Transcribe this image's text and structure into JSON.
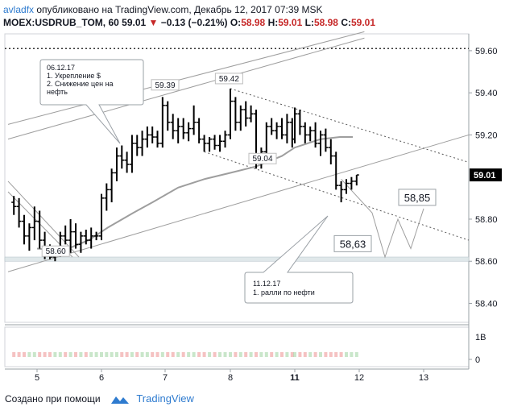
{
  "header": {
    "author": "avladfx",
    "published_text": "опубликовано на TradingView.com, Декабрь 12, 2017 07:39 MSK",
    "symbol": "MOEX:USDRUB_TOM, 60",
    "last": "59.01",
    "change": "−0.13 (−0.21%)",
    "o_label": "O:",
    "o_val": "58.98",
    "h_label": "H:",
    "h_val": "59.01",
    "l_label": "L:",
    "l_val": "58.98",
    "c_label": "C:",
    "c_val": "59.01"
  },
  "footer": {
    "created_with": "Создано при помощи",
    "brand": "TradingView"
  },
  "colors": {
    "candle": "#000000",
    "ma": "#9e9e9e",
    "channel": "#9e9e9e",
    "price_badge_bg": "#000000",
    "negative": "#c62828",
    "brand": "#2e7bcf"
  },
  "chart_data": {
    "type": "candlestick",
    "symbol": "MOEX:USDRUB_TOM",
    "timeframe": "60",
    "x_ticks": [
      "5",
      "6",
      "7",
      "8",
      "11",
      "12",
      "13"
    ],
    "y_ticks": [
      "59.60",
      "59.40",
      "59.20",
      "59.01",
      "58.80",
      "58.60",
      "58.40"
    ],
    "volume_ticks": [
      "1B",
      "0"
    ],
    "ylim": [
      58.31,
      59.68
    ],
    "last_price": 59.01,
    "dotted_level": 59.61,
    "support_zone": [
      58.6,
      58.62
    ],
    "labels": [
      {
        "text": "59.39",
        "day": 7.0,
        "price": 59.39
      },
      {
        "text": "59.42",
        "day": 7.98,
        "price": 59.42
      },
      {
        "text": "59.04",
        "day": 8.5,
        "price": 59.04
      },
      {
        "text": "58.60",
        "day": 5.29,
        "price": 58.6
      },
      {
        "text": "58,85",
        "day": 12.9,
        "price": 58.85
      },
      {
        "text": "58,63",
        "day": 11.9,
        "price": 58.63
      }
    ],
    "annotations": [
      {
        "lines": [
          "06.12.17",
          "1. Укрепление $",
          "2. Снижение цен на",
          "нефть"
        ],
        "day": 6.15,
        "price": 59.58
      },
      {
        "lines": [
          "11.12.17",
          "1. ралли по нефти"
        ],
        "day": 11.4,
        "price": 58.5
      }
    ],
    "candles": [
      {
        "day": 4.64,
        "o": 58.88,
        "h": 58.91,
        "l": 58.82,
        "c": 58.86
      },
      {
        "day": 4.72,
        "o": 58.86,
        "h": 58.9,
        "l": 58.76,
        "c": 58.79
      },
      {
        "day": 4.8,
        "o": 58.79,
        "h": 58.82,
        "l": 58.68,
        "c": 58.72
      },
      {
        "day": 4.88,
        "o": 58.72,
        "h": 58.78,
        "l": 58.65,
        "c": 58.76
      },
      {
        "day": 4.96,
        "o": 58.76,
        "h": 58.86,
        "l": 58.7,
        "c": 58.79
      },
      {
        "day": 5.04,
        "o": 58.79,
        "h": 58.84,
        "l": 58.66,
        "c": 58.7
      },
      {
        "day": 5.12,
        "o": 58.7,
        "h": 58.74,
        "l": 58.61,
        "c": 58.64
      },
      {
        "day": 5.2,
        "o": 58.64,
        "h": 58.68,
        "l": 58.61,
        "c": 58.62
      },
      {
        "day": 5.28,
        "o": 58.62,
        "h": 58.66,
        "l": 58.6,
        "c": 58.64
      },
      {
        "day": 5.36,
        "o": 58.64,
        "h": 58.74,
        "l": 58.62,
        "c": 58.72
      },
      {
        "day": 5.44,
        "o": 58.72,
        "h": 58.77,
        "l": 58.68,
        "c": 58.7
      },
      {
        "day": 5.52,
        "o": 58.7,
        "h": 58.8,
        "l": 58.64,
        "c": 58.74
      },
      {
        "day": 5.6,
        "o": 58.74,
        "h": 58.78,
        "l": 58.66,
        "c": 58.68
      },
      {
        "day": 5.68,
        "o": 58.68,
        "h": 58.74,
        "l": 58.64,
        "c": 58.72
      },
      {
        "day": 5.76,
        "o": 58.72,
        "h": 58.75,
        "l": 58.68,
        "c": 58.7
      },
      {
        "day": 5.84,
        "o": 58.7,
        "h": 58.76,
        "l": 58.66,
        "c": 58.72
      },
      {
        "day": 5.92,
        "o": 58.72,
        "h": 58.74,
        "l": 58.7,
        "c": 58.72
      },
      {
        "day": 6.0,
        "o": 58.72,
        "h": 58.92,
        "l": 58.7,
        "c": 58.9
      },
      {
        "day": 6.08,
        "o": 58.9,
        "h": 58.97,
        "l": 58.84,
        "c": 58.94
      },
      {
        "day": 6.16,
        "o": 58.94,
        "h": 59.04,
        "l": 58.88,
        "c": 59.02
      },
      {
        "day": 6.24,
        "o": 59.02,
        "h": 59.14,
        "l": 58.98,
        "c": 59.1
      },
      {
        "day": 6.32,
        "o": 59.1,
        "h": 59.15,
        "l": 59.04,
        "c": 59.08
      },
      {
        "day": 6.4,
        "o": 59.08,
        "h": 59.12,
        "l": 59.02,
        "c": 59.06
      },
      {
        "day": 6.48,
        "o": 59.06,
        "h": 59.2,
        "l": 59.02,
        "c": 59.16
      },
      {
        "day": 6.56,
        "o": 59.16,
        "h": 59.2,
        "l": 59.1,
        "c": 59.14
      },
      {
        "day": 6.64,
        "o": 59.14,
        "h": 59.22,
        "l": 59.1,
        "c": 59.18
      },
      {
        "day": 6.72,
        "o": 59.18,
        "h": 59.24,
        "l": 59.14,
        "c": 59.2
      },
      {
        "day": 6.8,
        "o": 59.2,
        "h": 59.24,
        "l": 59.16,
        "c": 59.19
      },
      {
        "day": 6.88,
        "o": 59.19,
        "h": 59.22,
        "l": 59.14,
        "c": 59.16
      },
      {
        "day": 6.96,
        "o": 59.16,
        "h": 59.38,
        "l": 59.14,
        "c": 59.34
      },
      {
        "day": 7.04,
        "o": 59.34,
        "h": 59.36,
        "l": 59.22,
        "c": 59.26
      },
      {
        "day": 7.12,
        "o": 59.26,
        "h": 59.3,
        "l": 59.18,
        "c": 59.22
      },
      {
        "day": 7.2,
        "o": 59.22,
        "h": 59.28,
        "l": 59.16,
        "c": 59.24
      },
      {
        "day": 7.28,
        "o": 59.24,
        "h": 59.28,
        "l": 59.18,
        "c": 59.21
      },
      {
        "day": 7.36,
        "o": 59.21,
        "h": 59.26,
        "l": 59.17,
        "c": 59.23
      },
      {
        "day": 7.44,
        "o": 59.23,
        "h": 59.34,
        "l": 59.2,
        "c": 59.26
      },
      {
        "day": 7.52,
        "o": 59.26,
        "h": 59.28,
        "l": 59.16,
        "c": 59.18
      },
      {
        "day": 7.6,
        "o": 59.18,
        "h": 59.2,
        "l": 59.12,
        "c": 59.16
      },
      {
        "day": 7.68,
        "o": 59.16,
        "h": 59.19,
        "l": 59.12,
        "c": 59.18
      },
      {
        "day": 7.76,
        "o": 59.18,
        "h": 59.2,
        "l": 59.13,
        "c": 59.15
      },
      {
        "day": 7.84,
        "o": 59.15,
        "h": 59.2,
        "l": 59.12,
        "c": 59.17
      },
      {
        "day": 7.92,
        "o": 59.17,
        "h": 59.22,
        "l": 59.14,
        "c": 59.2
      },
      {
        "day": 8.0,
        "o": 59.2,
        "h": 59.42,
        "l": 59.18,
        "c": 59.36
      },
      {
        "day": 8.08,
        "o": 59.36,
        "h": 59.38,
        "l": 59.22,
        "c": 59.26
      },
      {
        "day": 8.16,
        "o": 59.26,
        "h": 59.34,
        "l": 59.22,
        "c": 59.32
      },
      {
        "day": 8.24,
        "o": 59.32,
        "h": 59.36,
        "l": 59.24,
        "c": 59.28
      },
      {
        "day": 8.32,
        "o": 59.28,
        "h": 59.34,
        "l": 59.26,
        "c": 59.3
      },
      {
        "day": 8.4,
        "o": 59.3,
        "h": 59.32,
        "l": 59.04,
        "c": 59.08
      },
      {
        "day": 8.48,
        "o": 59.08,
        "h": 59.14,
        "l": 59.04,
        "c": 59.12
      },
      {
        "day": 8.56,
        "o": 59.12,
        "h": 59.26,
        "l": 59.1,
        "c": 59.24
      },
      {
        "day": 8.64,
        "o": 59.24,
        "h": 59.28,
        "l": 59.2,
        "c": 59.22
      },
      {
        "day": 8.72,
        "o": 59.22,
        "h": 59.26,
        "l": 59.18,
        "c": 59.24
      },
      {
        "day": 8.8,
        "o": 59.24,
        "h": 59.28,
        "l": 59.18,
        "c": 59.2
      },
      {
        "day": 8.88,
        "o": 59.2,
        "h": 59.3,
        "l": 59.16,
        "c": 59.26
      },
      {
        "day": 8.96,
        "o": 59.26,
        "h": 59.28,
        "l": 59.14,
        "c": 59.18
      },
      {
        "day": 11.0,
        "o": 59.18,
        "h": 59.33,
        "l": 59.16,
        "c": 59.3
      },
      {
        "day": 11.08,
        "o": 59.3,
        "h": 59.32,
        "l": 59.2,
        "c": 59.24
      },
      {
        "day": 11.16,
        "o": 59.24,
        "h": 59.26,
        "l": 59.16,
        "c": 59.2
      },
      {
        "day": 11.24,
        "o": 59.2,
        "h": 59.24,
        "l": 59.17,
        "c": 59.22
      },
      {
        "day": 11.32,
        "o": 59.22,
        "h": 59.26,
        "l": 59.14,
        "c": 59.16
      },
      {
        "day": 11.4,
        "o": 59.16,
        "h": 59.22,
        "l": 59.1,
        "c": 59.2
      },
      {
        "day": 11.48,
        "o": 59.2,
        "h": 59.23,
        "l": 59.12,
        "c": 59.14
      },
      {
        "day": 11.56,
        "o": 59.14,
        "h": 59.18,
        "l": 59.06,
        "c": 59.1
      },
      {
        "day": 11.64,
        "o": 59.1,
        "h": 59.12,
        "l": 58.94,
        "c": 58.96
      },
      {
        "day": 11.72,
        "o": 58.96,
        "h": 58.98,
        "l": 58.88,
        "c": 58.94
      },
      {
        "day": 11.8,
        "o": 58.94,
        "h": 58.99,
        "l": 58.92,
        "c": 58.97
      },
      {
        "day": 11.88,
        "o": 58.97,
        "h": 59.0,
        "l": 58.94,
        "c": 58.98
      },
      {
        "day": 11.96,
        "o": 58.98,
        "h": 59.01,
        "l": 58.96,
        "c": 59.01
      }
    ],
    "ma_line": [
      [
        5.0,
        58.66
      ],
      [
        5.4,
        58.65
      ],
      [
        5.8,
        58.7
      ],
      [
        6.1,
        58.76
      ],
      [
        6.5,
        58.83
      ],
      [
        6.8,
        58.88
      ],
      [
        7.2,
        58.95
      ],
      [
        7.6,
        58.99
      ],
      [
        8.0,
        59.02
      ],
      [
        8.4,
        59.05
      ],
      [
        8.8,
        59.1
      ],
      [
        11.0,
        59.14
      ],
      [
        11.4,
        59.18
      ],
      [
        11.7,
        59.19
      ],
      [
        11.9,
        59.19
      ]
    ],
    "channels": [
      {
        "points": [
          [
            4.55,
            59.25
          ],
          [
            12.08,
            59.69
          ]
        ]
      },
      {
        "points": [
          [
            4.55,
            59.18
          ],
          [
            12.08,
            59.66
          ]
        ]
      },
      {
        "points": [
          [
            4.55,
            58.55
          ],
          [
            13.7,
            59.2
          ]
        ]
      },
      {
        "points": [
          [
            4.55,
            58.98
          ],
          [
            5.65,
            58.62
          ]
        ]
      },
      {
        "points": [
          [
            4.55,
            58.93
          ],
          [
            5.55,
            58.62
          ]
        ]
      },
      {
        "points": [
          [
            8.0,
            59.42
          ],
          [
            13.7,
            59.07
          ]
        ],
        "dotted": true
      },
      {
        "points": [
          [
            7.6,
            59.12
          ],
          [
            13.7,
            58.7
          ]
        ],
        "dotted": true
      }
    ],
    "forecast_path": [
      [
        11.72,
        58.99
      ],
      [
        12.2,
        58.83
      ],
      [
        12.4,
        58.62
      ],
      [
        12.6,
        58.8
      ],
      [
        12.8,
        58.66
      ],
      [
        13.0,
        58.85
      ]
    ]
  }
}
